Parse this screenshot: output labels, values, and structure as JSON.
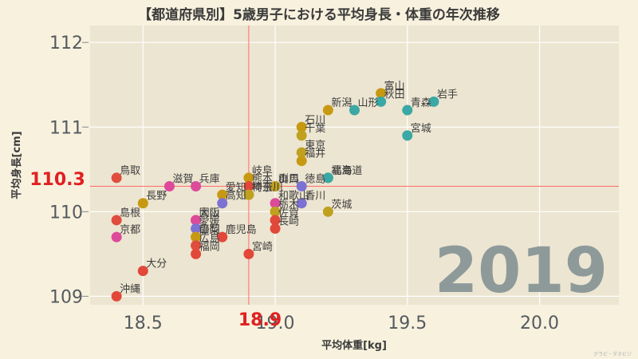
{
  "chart_data": {
    "type": "scatter",
    "title": "【都道府県別】5歳男子における平均身長・体重の年次推移",
    "xlabel": "平均体重[kg]",
    "ylabel": "平均身長[cm]",
    "xlim": [
      18.3,
      20.3
    ],
    "ylim": [
      108.9,
      112.2
    ],
    "xticks": [
      18.5,
      19.0,
      19.5,
      20.0
    ],
    "xtick_labels": [
      "18.5",
      "19.0",
      "19.5",
      "20.0"
    ],
    "yticks": [
      109,
      110,
      111,
      112
    ],
    "ytick_labels": [
      "109",
      "110",
      "111",
      "112"
    ],
    "grid": true,
    "legend": "none",
    "year": "2019",
    "reference": {
      "x": 18.9,
      "y": 110.3,
      "x_label": "18.9",
      "y_label": "110.3",
      "color": "#ff6b6b"
    },
    "colors": {
      "hokkaido_tohoku": "#3aa8a4",
      "kanto": "#bfa11f",
      "chubu": "#c79912",
      "kinki": "#dd4a9a",
      "chugoku": "#e04d3e",
      "shikoku": "#7c72d2",
      "kyushu": "#e2483a",
      "label_red": "#e02020"
    },
    "points": [
      {
        "name": "富山",
        "x": 19.4,
        "y": 111.4,
        "group": "chubu"
      },
      {
        "name": "秋田",
        "x": 19.4,
        "y": 111.3,
        "group": "hokkaido_tohoku"
      },
      {
        "name": "岩手",
        "x": 19.6,
        "y": 111.3,
        "group": "hokkaido_tohoku"
      },
      {
        "name": "山形",
        "x": 19.3,
        "y": 111.2,
        "group": "hokkaido_tohoku"
      },
      {
        "name": "青森",
        "x": 19.5,
        "y": 111.2,
        "group": "hokkaido_tohoku"
      },
      {
        "name": "新潟",
        "x": 19.2,
        "y": 111.2,
        "group": "chubu"
      },
      {
        "name": "石川",
        "x": 19.1,
        "y": 111.0,
        "group": "chubu"
      },
      {
        "name": "千葉",
        "x": 19.1,
        "y": 110.9,
        "group": "kanto"
      },
      {
        "name": "宮城",
        "x": 19.5,
        "y": 110.9,
        "group": "hokkaido_tohoku"
      },
      {
        "name": "東京",
        "x": 19.1,
        "y": 110.7,
        "group": "kanto"
      },
      {
        "name": "福井",
        "x": 19.1,
        "y": 110.6,
        "group": "chubu"
      },
      {
        "name": "福島",
        "x": 19.2,
        "y": 110.4,
        "group": "hokkaido_tohoku"
      },
      {
        "name": "北海道",
        "x": 19.2,
        "y": 110.4,
        "group": "hokkaido_tohoku"
      },
      {
        "name": "鳥取",
        "x": 18.4,
        "y": 110.4,
        "group": "chugoku"
      },
      {
        "name": "岐阜",
        "x": 18.9,
        "y": 110.4,
        "group": "chubu"
      },
      {
        "name": "滋賀",
        "x": 18.6,
        "y": 110.3,
        "group": "kinki"
      },
      {
        "name": "兵庫",
        "x": 18.7,
        "y": 110.3,
        "group": "kinki"
      },
      {
        "name": "熊本",
        "x": 18.9,
        "y": 110.3,
        "group": "kyushu"
      },
      {
        "name": "山口",
        "x": 19.0,
        "y": 110.3,
        "group": "chugoku"
      },
      {
        "name": "群馬",
        "x": 19.0,
        "y": 110.3,
        "group": "kanto"
      },
      {
        "name": "徳島",
        "x": 19.1,
        "y": 110.3,
        "group": "shikoku"
      },
      {
        "name": "愛知",
        "x": 18.8,
        "y": 110.2,
        "group": "chubu"
      },
      {
        "name": "神奈川",
        "x": 18.9,
        "y": 110.2,
        "group": "kanto"
      },
      {
        "name": "長野",
        "x": 18.5,
        "y": 110.1,
        "group": "chubu"
      },
      {
        "name": "高知",
        "x": 18.8,
        "y": 110.1,
        "group": "shikoku"
      },
      {
        "name": "埼玉",
        "x": 18.9,
        "y": 110.2,
        "group": "kanto"
      },
      {
        "name": "和歌山",
        "x": 19.0,
        "y": 110.1,
        "group": "kinki"
      },
      {
        "name": "香川",
        "x": 19.1,
        "y": 110.1,
        "group": "shikoku"
      },
      {
        "name": "茨城",
        "x": 19.2,
        "y": 110.0,
        "group": "kanto"
      },
      {
        "name": "栃木",
        "x": 19.0,
        "y": 110.0,
        "group": "kanto"
      },
      {
        "name": "島根",
        "x": 18.4,
        "y": 109.9,
        "group": "chugoku"
      },
      {
        "name": "岡山",
        "x": 18.7,
        "y": 109.9,
        "group": "chugoku"
      },
      {
        "name": "大阪",
        "x": 18.7,
        "y": 109.9,
        "group": "kinki"
      },
      {
        "name": "愛媛",
        "x": 18.7,
        "y": 109.8,
        "group": "shikoku"
      },
      {
        "name": "静岡",
        "x": 18.7,
        "y": 109.7,
        "group": "chubu"
      },
      {
        "name": "佐賀",
        "x": 19.0,
        "y": 109.9,
        "group": "kyushu"
      },
      {
        "name": "長崎",
        "x": 19.0,
        "y": 109.8,
        "group": "kyushu"
      },
      {
        "name": "京都",
        "x": 18.4,
        "y": 109.7,
        "group": "kinki"
      },
      {
        "name": "山梨",
        "x": 18.7,
        "y": 109.7,
        "group": "chubu"
      },
      {
        "name": "鹿児島",
        "x": 18.8,
        "y": 109.7,
        "group": "kyushu"
      },
      {
        "name": "広島",
        "x": 18.7,
        "y": 109.6,
        "group": "chugoku"
      },
      {
        "name": "福岡",
        "x": 18.7,
        "y": 109.5,
        "group": "kyushu"
      },
      {
        "name": "宮崎",
        "x": 18.9,
        "y": 109.5,
        "group": "kyushu"
      },
      {
        "name": "大分",
        "x": 18.5,
        "y": 109.3,
        "group": "kyushu"
      },
      {
        "name": "沖縄",
        "x": 18.4,
        "y": 109.0,
        "group": "kyushu"
      }
    ]
  },
  "credit": "グラビ・ダタビジ"
}
